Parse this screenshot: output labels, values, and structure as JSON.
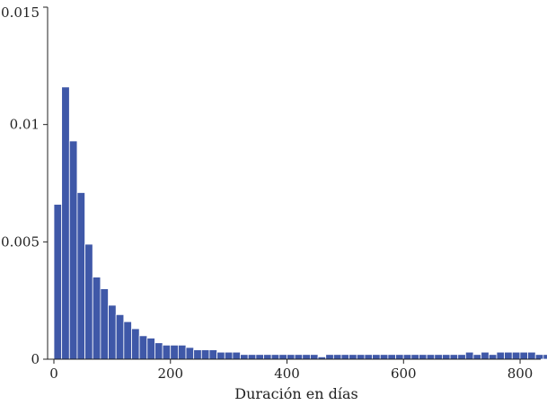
{
  "chart_data": {
    "type": "bar",
    "title": "",
    "xlabel": "Duración en días",
    "ylabel": "",
    "xlim": [
      -10,
      830
    ],
    "ylim": [
      0,
      0.015
    ],
    "grid": false,
    "legend": "none",
    "color": "#3f58a8",
    "x_ticks": [
      0,
      200,
      400,
      600,
      800
    ],
    "x_tick_labels": [
      "0",
      "200",
      "400",
      "600",
      "800"
    ],
    "y_ticks": [
      0,
      0.005,
      0.01,
      0.015
    ],
    "y_tick_labels": [
      "0",
      "0.005",
      "0.01",
      "0.015"
    ],
    "bin_width": 13.33,
    "bin_start": 0,
    "values": [
      0.0066,
      0.0116,
      0.0093,
      0.0071,
      0.0049,
      0.0035,
      0.003,
      0.0023,
      0.0019,
      0.0016,
      0.0013,
      0.001,
      0.0009,
      0.0007,
      0.0006,
      0.0006,
      0.0006,
      0.0005,
      0.0004,
      0.0004,
      0.0004,
      0.0003,
      0.0003,
      0.0003,
      0.0002,
      0.0002,
      0.0002,
      0.0002,
      0.0002,
      0.0002,
      0.0002,
      0.0002,
      0.0002,
      0.0002,
      0.0001,
      0.0002,
      0.0002,
      0.0002,
      0.0002,
      0.0002,
      0.0002,
      0.0002,
      0.0002,
      0.0002,
      0.0002,
      0.0002,
      0.0002,
      0.0002,
      0.0002,
      0.0002,
      0.0002,
      0.0002,
      0.0002,
      0.0003,
      0.0002,
      0.0003,
      0.0002,
      0.0003,
      0.0003,
      0.0003,
      0.0003,
      0.0003,
      0.0002,
      0.0002
    ]
  }
}
